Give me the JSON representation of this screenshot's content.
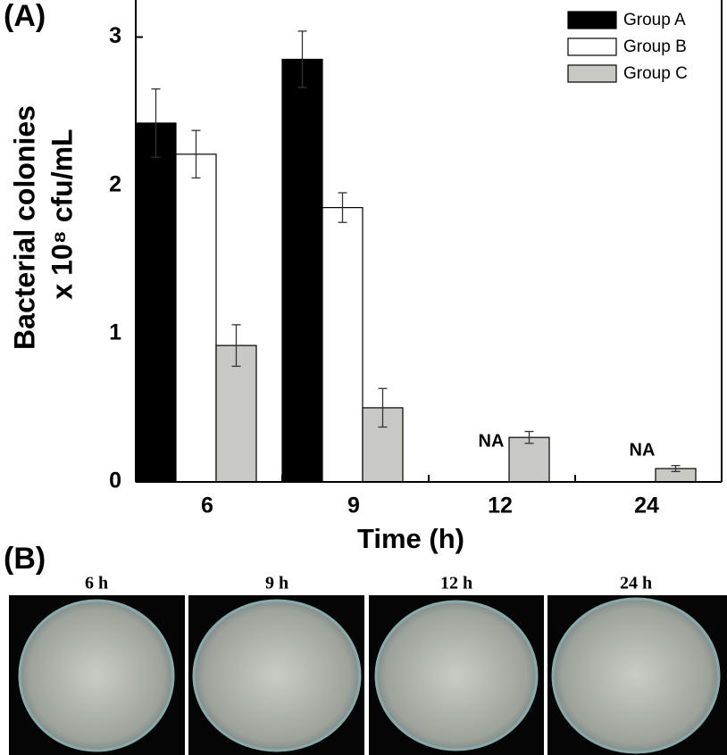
{
  "figure": {
    "panel_a_label": "(A)",
    "panel_b_label": "(B)",
    "photo_labels": [
      "6 h",
      "9 h",
      "12 h",
      "24 h"
    ]
  },
  "chart_data": {
    "type": "bar",
    "xlabel": "Time (h)",
    "ylabel": [
      "Bacterial colonies",
      "x 10⁸ cfu/mL"
    ],
    "categories": [
      "6",
      "9",
      "12",
      "24"
    ],
    "series": [
      {
        "name": "Group A",
        "color": "#000000",
        "values": [
          2.42,
          2.85,
          null,
          null
        ],
        "errors": [
          0.23,
          0.19,
          null,
          null
        ]
      },
      {
        "name": "Group B",
        "color": "#ffffff",
        "values": [
          2.21,
          1.85,
          null,
          null
        ],
        "errors": [
          0.16,
          0.1,
          null,
          null
        ]
      },
      {
        "name": "Group C",
        "color": "#c8c9c5",
        "values": [
          0.92,
          0.5,
          0.3,
          0.09
        ],
        "errors": [
          0.14,
          0.13,
          0.04,
          0.02
        ]
      }
    ],
    "na_label": "NA",
    "ylim": [
      0,
      3.25
    ],
    "yticks": [
      0,
      1,
      2,
      3
    ],
    "legend": "top-right"
  }
}
